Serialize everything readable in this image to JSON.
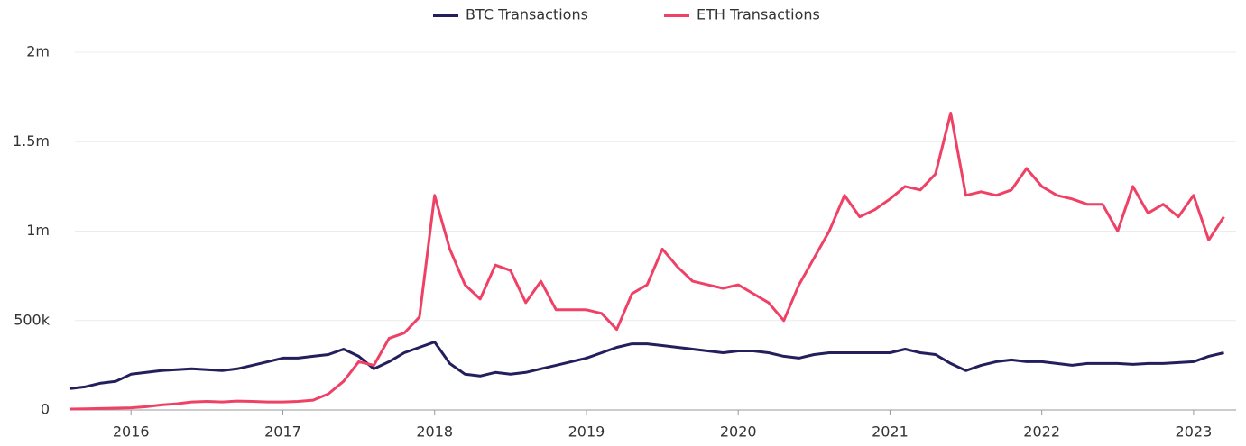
{
  "chart_data": {
    "type": "line",
    "x": [
      2015.6,
      2015.7,
      2015.8,
      2015.9,
      2016.0,
      2016.1,
      2016.2,
      2016.3,
      2016.4,
      2016.5,
      2016.6,
      2016.7,
      2016.8,
      2016.9,
      2017.0,
      2017.1,
      2017.2,
      2017.3,
      2017.4,
      2017.5,
      2017.6,
      2017.7,
      2017.8,
      2017.9,
      2018.0,
      2018.1,
      2018.2,
      2018.3,
      2018.4,
      2018.5,
      2018.6,
      2018.7,
      2018.8,
      2018.9,
      2019.0,
      2019.1,
      2019.2,
      2019.3,
      2019.4,
      2019.5,
      2019.6,
      2019.7,
      2019.8,
      2019.9,
      2020.0,
      2020.1,
      2020.2,
      2020.3,
      2020.4,
      2020.5,
      2020.6,
      2020.7,
      2020.8,
      2020.9,
      2021.0,
      2021.1,
      2021.2,
      2021.3,
      2021.4,
      2021.5,
      2021.6,
      2021.7,
      2021.8,
      2021.9,
      2022.0,
      2022.1,
      2022.2,
      2022.3,
      2022.4,
      2022.5,
      2022.6,
      2022.7,
      2022.8,
      2022.9,
      2023.0,
      2023.1,
      2023.2
    ],
    "series": [
      {
        "name": "BTC Transactions",
        "color": "#231f5c",
        "values": [
          120000,
          130000,
          150000,
          160000,
          200000,
          210000,
          220000,
          225000,
          230000,
          225000,
          220000,
          230000,
          250000,
          270000,
          290000,
          290000,
          300000,
          310000,
          340000,
          300000,
          230000,
          270000,
          320000,
          350000,
          380000,
          260000,
          200000,
          190000,
          210000,
          200000,
          210000,
          230000,
          250000,
          270000,
          290000,
          320000,
          350000,
          370000,
          370000,
          360000,
          350000,
          340000,
          330000,
          320000,
          330000,
          330000,
          320000,
          300000,
          290000,
          310000,
          320000,
          320000,
          320000,
          320000,
          320000,
          340000,
          320000,
          310000,
          260000,
          220000,
          250000,
          270000,
          280000,
          270000,
          270000,
          260000,
          250000,
          260000,
          260000,
          260000,
          255000,
          260000,
          260000,
          265000,
          270000,
          300000,
          320000
        ]
      },
      {
        "name": "ETH Transactions",
        "color": "#ef4166",
        "values": [
          5000,
          6000,
          8000,
          10000,
          12000,
          18000,
          28000,
          35000,
          45000,
          48000,
          45000,
          50000,
          48000,
          45000,
          45000,
          48000,
          55000,
          90000,
          160000,
          270000,
          250000,
          400000,
          430000,
          520000,
          1200000,
          900000,
          700000,
          620000,
          810000,
          780000,
          600000,
          720000,
          560000,
          560000,
          560000,
          540000,
          450000,
          650000,
          700000,
          900000,
          800000,
          720000,
          700000,
          680000,
          700000,
          650000,
          600000,
          500000,
          700000,
          850000,
          1000000,
          1200000,
          1080000,
          1120000,
          1180000,
          1250000,
          1230000,
          1320000,
          1660000,
          1200000,
          1220000,
          1200000,
          1230000,
          1350000,
          1250000,
          1200000,
          1180000,
          1150000,
          1150000,
          1000000,
          1250000,
          1100000,
          1150000,
          1080000,
          1200000,
          950000,
          1080000
        ]
      }
    ],
    "xlim": [
      2015.63,
      2023.28
    ],
    "xticks": [
      2016,
      2017,
      2018,
      2019,
      2020,
      2021,
      2022,
      2023
    ],
    "ylim": [
      0,
      2000000
    ],
    "yticks": [
      0,
      {
        "value": 500000,
        "label": "500k"
      },
      {
        "value": 1000000,
        "label": "1m"
      },
      {
        "value": 1500000,
        "label": "1.5m"
      },
      {
        "value": 2000000,
        "label": "2m"
      }
    ],
    "grid": true
  }
}
